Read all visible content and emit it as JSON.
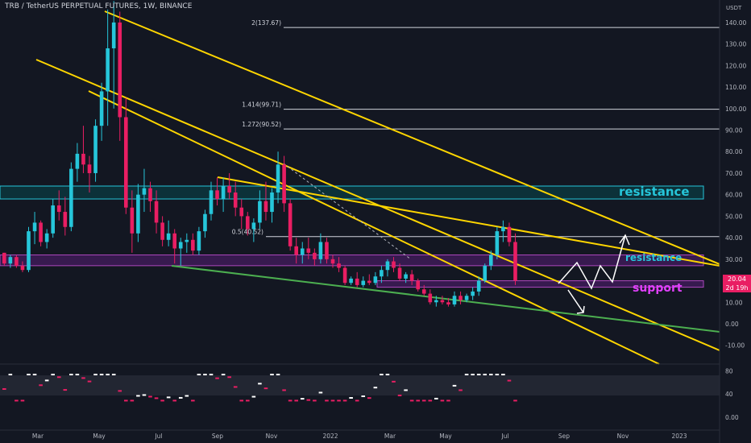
{
  "header": {
    "title": "TRB / TetherUS PERPETUAL FUTURES, 1W, BINANCE"
  },
  "axis": {
    "unit": "USDT"
  },
  "current_price": {
    "value": "20.04",
    "countdown": "2d 19h"
  },
  "annotations": {
    "resistance_upper": "resistance",
    "resistance_lower": "resistance",
    "support": "support"
  },
  "fib_levels": [
    {
      "label": "2(137.67)",
      "value": 137.67
    },
    {
      "label": "1.414(99.71)",
      "value": 99.71
    },
    {
      "label": "1.272(90.52)",
      "value": 90.52
    },
    {
      "label": "0.5(40.52)",
      "value": 40.52
    }
  ],
  "colors": {
    "background": "#131722",
    "up": "#26c6da",
    "down": "#e91e63",
    "trendline": "#ffd600",
    "support_line": "#4caf50",
    "resistance_text": "#26c6da",
    "support_text": "#e040fb",
    "zone_fill": "#7b1fa2",
    "zone_fill_cyan": "#006064"
  },
  "chart_data": [
    {
      "type": "candlestick",
      "title": "TRB / TetherUS PERPETUAL FUTURES, 1W, BINANCE",
      "ylabel": "USDT",
      "y_ticks": [
        -10,
        0,
        10,
        20,
        30,
        40,
        50,
        60,
        70,
        80,
        90,
        100,
        110,
        120,
        130,
        140
      ],
      "ylim": [
        -15,
        145
      ],
      "x_ticks": [
        "Mar",
        "May",
        "Jul",
        "Sep",
        "Nov",
        "2022",
        "Mar",
        "May",
        "Jul",
        "Sep",
        "Nov",
        "2023"
      ],
      "candles": [
        [
          33,
          33,
          27,
          28
        ],
        [
          28,
          32,
          26,
          31
        ],
        [
          31,
          32,
          26,
          27
        ],
        [
          27,
          29,
          24,
          25
        ],
        [
          25,
          45,
          24,
          43
        ],
        [
          43,
          52,
          37,
          47
        ],
        [
          47,
          48,
          36,
          38
        ],
        [
          38,
          44,
          35,
          42
        ],
        [
          42,
          58,
          40,
          55
        ],
        [
          55,
          62,
          48,
          52
        ],
        [
          52,
          59,
          41,
          45
        ],
        [
          45,
          75,
          43,
          72
        ],
        [
          72,
          84,
          66,
          79
        ],
        [
          79,
          92,
          70,
          74
        ],
        [
          74,
          78,
          61,
          70
        ],
        [
          70,
          95,
          66,
          92
        ],
        [
          92,
          112,
          85,
          108
        ],
        [
          108,
          146,
          92,
          128
        ],
        [
          128,
          150,
          100,
          140
        ],
        [
          140,
          145,
          85,
          96
        ],
        [
          96,
          105,
          51,
          54
        ],
        [
          54,
          62,
          33,
          42
        ],
        [
          42,
          65,
          38,
          60
        ],
        [
          60,
          72,
          52,
          63
        ],
        [
          63,
          66,
          52,
          57
        ],
        [
          57,
          62,
          42,
          47
        ],
        [
          47,
          50,
          36,
          39
        ],
        [
          39,
          48,
          36,
          42
        ],
        [
          42,
          44,
          28,
          35
        ],
        [
          35,
          40,
          27,
          38
        ],
        [
          38,
          42,
          33,
          39
        ],
        [
          39,
          42,
          32,
          34
        ],
        [
          34,
          45,
          32,
          43
        ],
        [
          43,
          53,
          40,
          51
        ],
        [
          51,
          66,
          48,
          62
        ],
        [
          62,
          68,
          55,
          58
        ],
        [
          58,
          68,
          52,
          64
        ],
        [
          64,
          70,
          58,
          61
        ],
        [
          61,
          66,
          50,
          54
        ],
        [
          54,
          58,
          44,
          50
        ],
        [
          50,
          52,
          41,
          44
        ],
        [
          44,
          49,
          38,
          47
        ],
        [
          47,
          62,
          44,
          57
        ],
        [
          57,
          66,
          48,
          52
        ],
        [
          52,
          63,
          47,
          61
        ],
        [
          61,
          80,
          56,
          74
        ],
        [
          74,
          78,
          52,
          56
        ],
        [
          56,
          58,
          34,
          36
        ],
        [
          36,
          40,
          28,
          32
        ],
        [
          32,
          38,
          28,
          35
        ],
        [
          35,
          40,
          30,
          33
        ],
        [
          33,
          35,
          27,
          30
        ],
        [
          30,
          42,
          28,
          38
        ],
        [
          38,
          40,
          28,
          30
        ],
        [
          30,
          32,
          26,
          28
        ],
        [
          28,
          31,
          24,
          26
        ],
        [
          26,
          27,
          18,
          19
        ],
        [
          19,
          22,
          18,
          21
        ],
        [
          21,
          24,
          17,
          18
        ],
        [
          18,
          22,
          17,
          20
        ],
        [
          20,
          23,
          18,
          19
        ],
        [
          19,
          24,
          18,
          22
        ],
        [
          22,
          27,
          19,
          25
        ],
        [
          25,
          30,
          22,
          29
        ],
        [
          29,
          31,
          24,
          26
        ],
        [
          26,
          28,
          20,
          21
        ],
        [
          21,
          24,
          19,
          23
        ],
        [
          23,
          25,
          18,
          20
        ],
        [
          20,
          21,
          15,
          16
        ],
        [
          16,
          18,
          13,
          14
        ],
        [
          14,
          16,
          9,
          10
        ],
        [
          10,
          13,
          8,
          11
        ],
        [
          11,
          13,
          9,
          10
        ],
        [
          10,
          12,
          8,
          9
        ],
        [
          9,
          15,
          8,
          13
        ],
        [
          13,
          15,
          9,
          11
        ],
        [
          11,
          14,
          10,
          13
        ],
        [
          13,
          17,
          11,
          15
        ],
        [
          15,
          22,
          13,
          20
        ],
        [
          20,
          28,
          19,
          27
        ],
        [
          27,
          34,
          25,
          32
        ],
        [
          32,
          45,
          30,
          43
        ],
        [
          43,
          48,
          38,
          45
        ],
        [
          45,
          47,
          36,
          38
        ],
        [
          38,
          42,
          18,
          20
        ]
      ],
      "zones": [
        {
          "type": "resistance",
          "range": [
            58,
            64
          ]
        },
        {
          "type": "resistance",
          "range": [
            27,
            32
          ]
        },
        {
          "type": "support",
          "range": [
            17,
            20
          ]
        }
      ],
      "rsi": {
        "ticks": [
          0,
          40,
          80
        ],
        "ylim": [
          -8,
          90
        ]
      }
    }
  ]
}
